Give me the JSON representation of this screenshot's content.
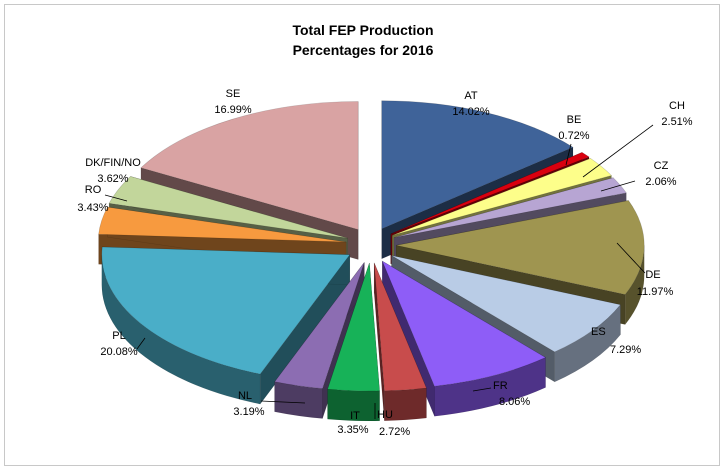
{
  "chart_data": {
    "type": "pie",
    "style": "3d-exploded",
    "title": "Total FEP Production",
    "subtitle": "Percentages for 2016",
    "legend": "none",
    "slices": [
      {
        "name": "AT",
        "value": 14.02,
        "label": "14.02%",
        "color": "#3f6399"
      },
      {
        "name": "BE",
        "value": 0.72,
        "label": "0.72%",
        "color": "#d9000f"
      },
      {
        "name": "CH",
        "value": 2.51,
        "label": "2.51%",
        "color": "#fdfe8a"
      },
      {
        "name": "CZ",
        "value": 2.06,
        "label": "2.06%",
        "color": "#b7a5d3"
      },
      {
        "name": "DE",
        "value": 11.97,
        "label": "11.97%",
        "color": "#9f9550"
      },
      {
        "name": "ES",
        "value": 7.29,
        "label": "7.29%",
        "color": "#b9cce6"
      },
      {
        "name": "FR",
        "value": 8.06,
        "label": "8.06%",
        "color": "#8e5df7"
      },
      {
        "name": "HU",
        "value": 2.72,
        "label": "2.72%",
        "color": "#c84c4c"
      },
      {
        "name": "IT",
        "value": 3.35,
        "label": "3.35%",
        "color": "#17b258"
      },
      {
        "name": "NL",
        "value": 3.19,
        "label": "3.19%",
        "color": "#8c6db2"
      },
      {
        "name": "PL",
        "value": 20.08,
        "label": "20.08%",
        "color": "#4aaec8"
      },
      {
        "name": "RO",
        "value": 3.43,
        "label": "3.43%",
        "color": "#f79a3f"
      },
      {
        "name": "DK/FIN/NO",
        "value": 3.62,
        "label": "3.62%",
        "color": "#c2d69b"
      },
      {
        "name": "SE",
        "value": 16.99,
        "label": "16.99%",
        "color": "#d9a3a3"
      }
    ]
  }
}
